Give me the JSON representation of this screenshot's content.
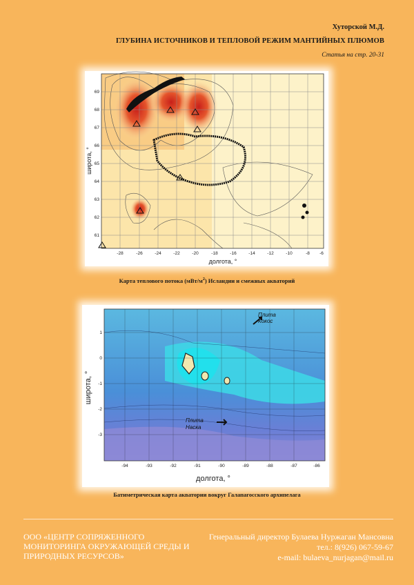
{
  "header": {
    "author": "Хуторской М.Д.",
    "title": "ГЛУБИНА ИСТОЧНИКОВ И ТЕПЛОВОЙ РЕЖИМ МАНТИЙНЫХ ПЛЮМОВ",
    "ref": "Статья на стр. 20-31"
  },
  "map1": {
    "caption_a": "Карта теплового потока (мВт/м",
    "caption_sup": "2",
    "caption_b": ") Исландии и смежных акваторий",
    "xlabel": "долгота, °",
    "ylabel": "широта, °",
    "xticks": [
      "-28",
      "-26",
      "-24",
      "-22",
      "-20",
      "-18",
      "-16",
      "-14",
      "-12",
      "-10",
      "-8",
      "-6"
    ],
    "yticks": [
      "69",
      "68",
      "67",
      "66",
      "65",
      "64",
      "63",
      "62",
      "61"
    ]
  },
  "map2": {
    "caption": "Батиметрическая карта акватории вокруг Галапагосского архипелага",
    "xlabel": "долгота, °",
    "ylabel": "широта, °",
    "xticks": [
      "-94",
      "-93",
      "-92",
      "-91",
      "-90",
      "-89",
      "-88",
      "-87",
      "-86"
    ],
    "yticks": [
      "1",
      "0",
      "-1",
      "-2",
      "-3"
    ],
    "plate1": "Плита",
    "plate1b": "Кокос",
    "plate2": "Плита",
    "plate2b": "Наска"
  },
  "footer": {
    "org1": "ООО «ЦЕНТР СОПРЯЖЕННОГО",
    "org2": "МОНИТОРИНГА ОКРУЖАЮЩЕЙ СРЕДЫ И",
    "org3": "ПРИРОДНЫХ РЕСУРСОВ»",
    "director": "Генеральный директор Булаева Нуржаган Мансовна",
    "phone": "тел.: 8(926) 067-59-67",
    "email": "e-mail: bulaeva_nurjagan@mail.ru"
  }
}
